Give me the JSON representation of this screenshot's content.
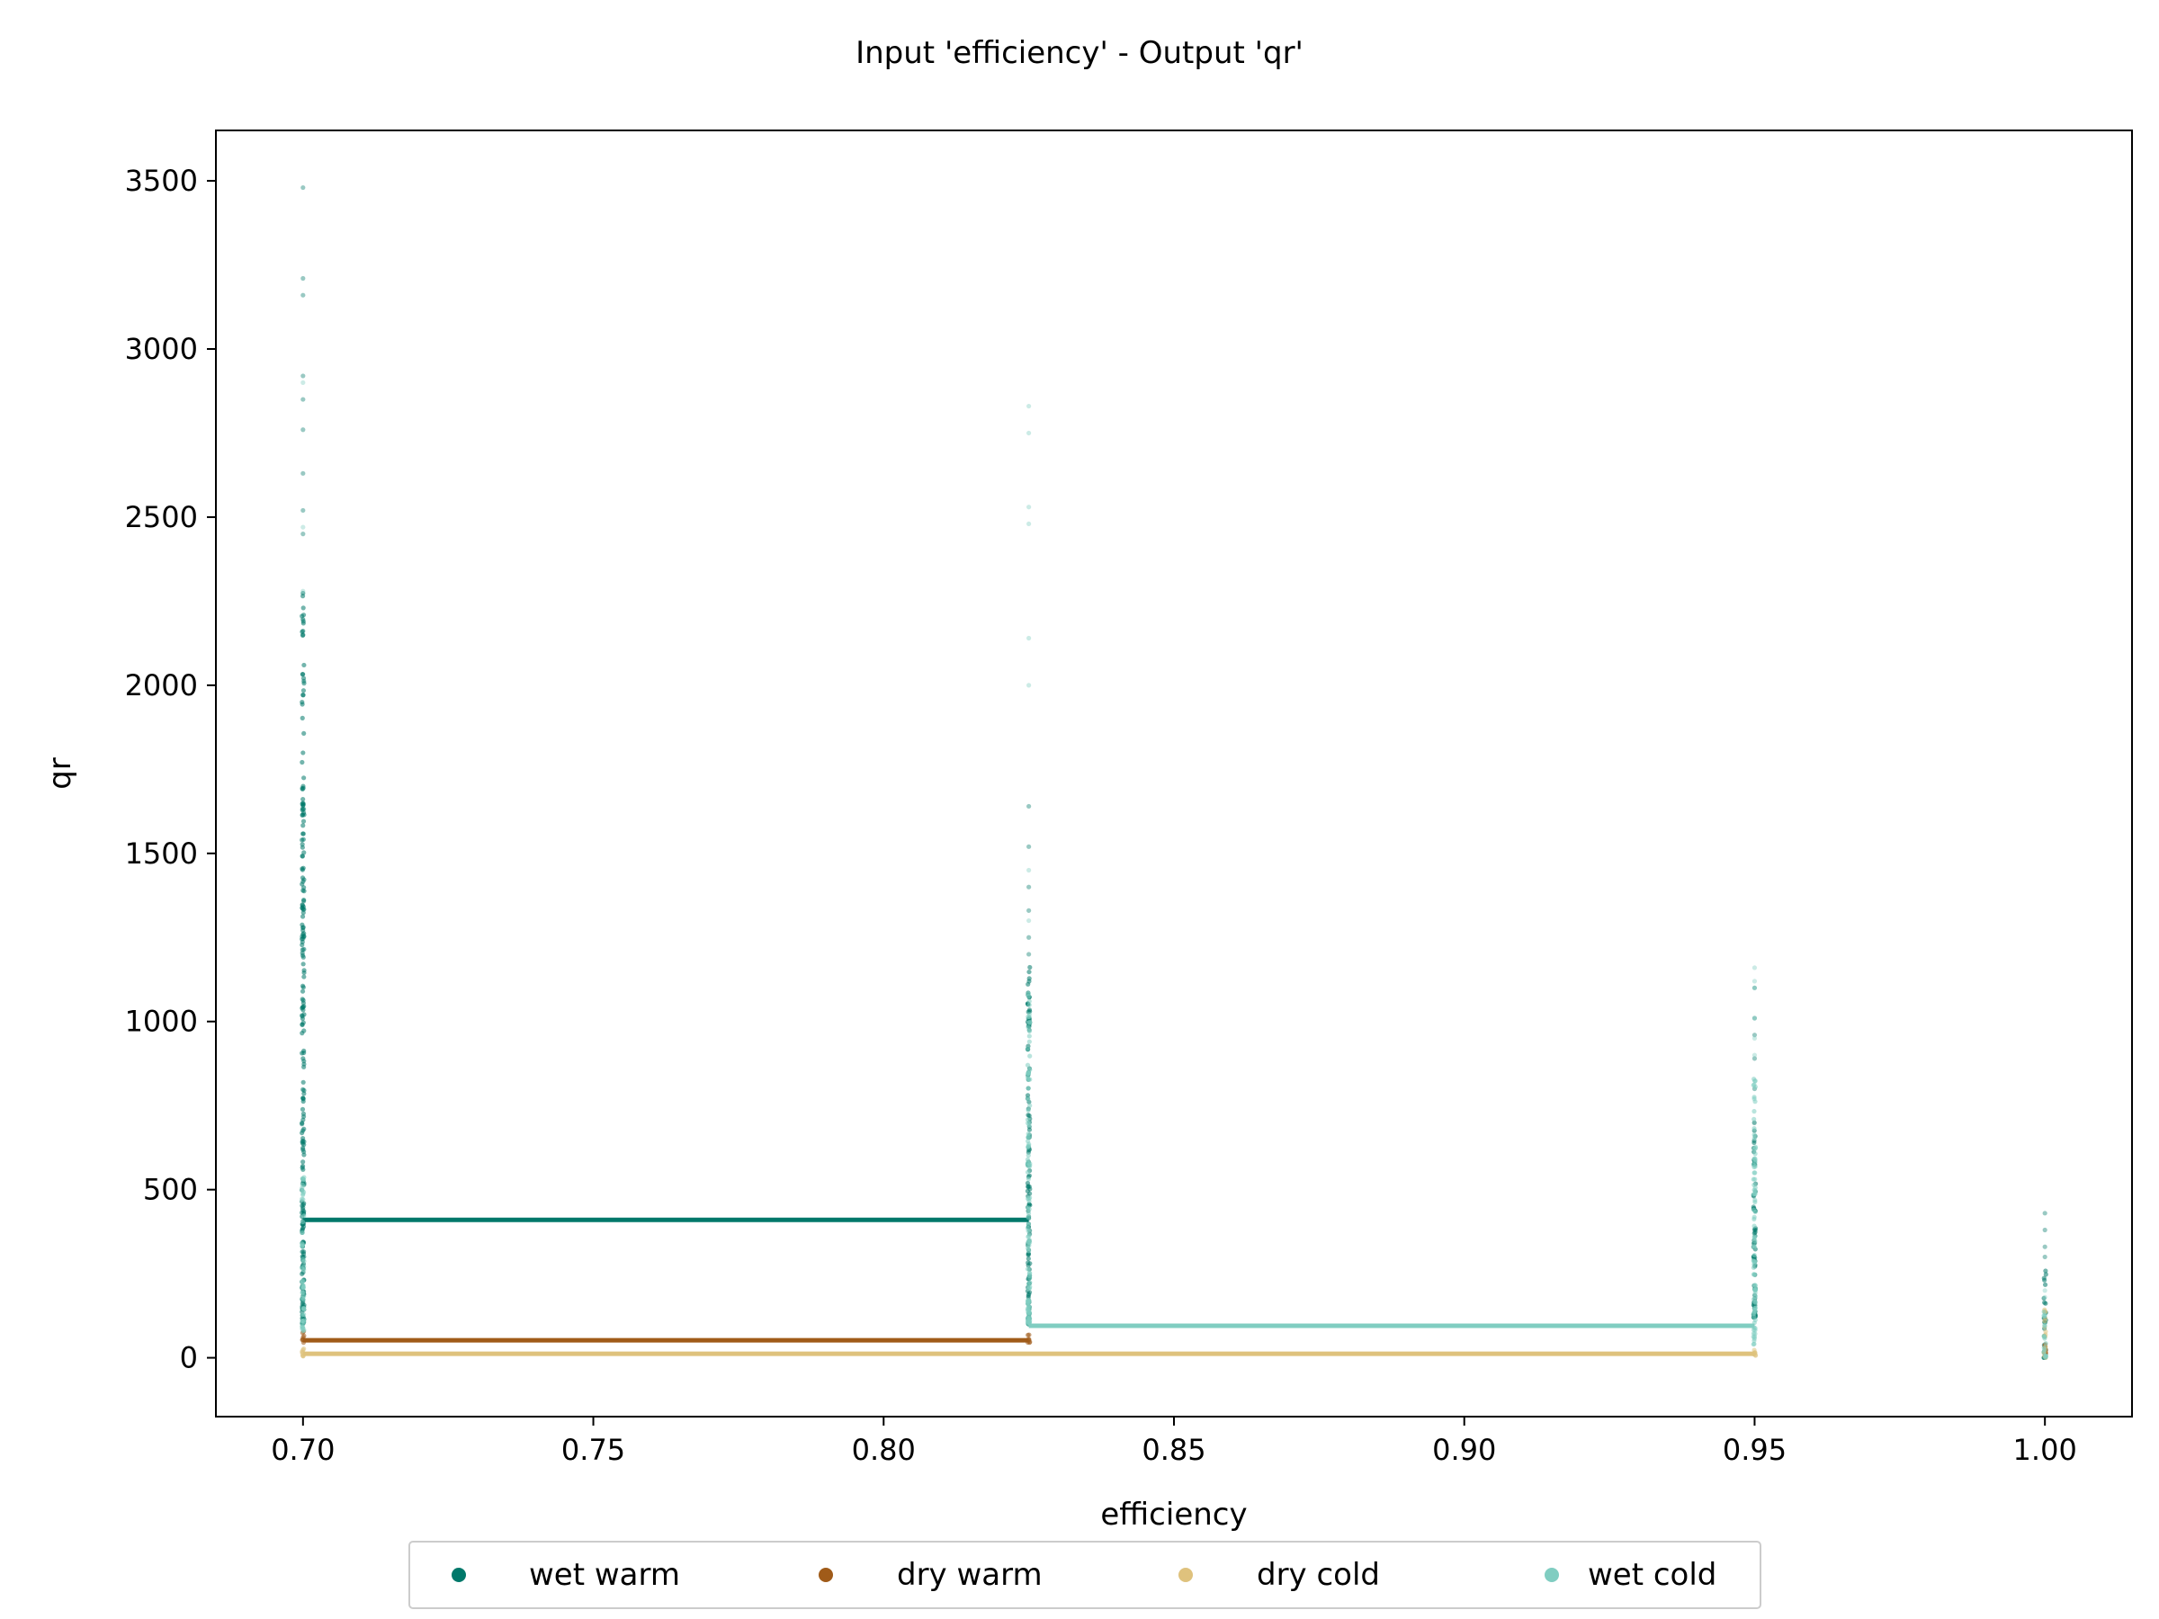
{
  "chart_data": {
    "type": "scatter",
    "title": "Input 'efficiency' - Output 'qr'",
    "xlabel": "efficiency",
    "ylabel": "qr",
    "xlim": [
      0.685,
      1.015
    ],
    "ylim": [
      -175,
      3650
    ],
    "x_ticks": [
      0.7,
      0.75,
      0.8,
      0.85,
      0.9,
      0.95,
      1.0
    ],
    "x_tick_labels": [
      "0.70",
      "0.75",
      "0.80",
      "0.85",
      "0.90",
      "0.95",
      "1.00"
    ],
    "y_ticks": [
      0,
      500,
      1000,
      1500,
      2000,
      2500,
      3000,
      3500
    ],
    "y_tick_labels": [
      "0",
      "500",
      "1000",
      "1500",
      "2000",
      "2500",
      "3000",
      "3500"
    ],
    "grid": false,
    "legend_position": "bottom-center",
    "series": [
      {
        "name": "wet warm",
        "color": "#00786a",
        "step_line": {
          "x": [
            0.7,
            0.825
          ],
          "y": 410
        },
        "point_clusters": [
          {
            "x": 0.7,
            "y_min": 100,
            "y_max": 2290,
            "outliers": [
              2450,
              2520,
              2630,
              2760,
              2850,
              2920,
              3160,
              3210,
              3480
            ]
          },
          {
            "x": 0.825,
            "y_min": 100,
            "y_max": 1180,
            "outliers": [
              1200,
              1250,
              1330,
              1400,
              1520,
              1640
            ]
          },
          {
            "x": 0.95,
            "y_min": 120,
            "y_max": 720,
            "outliers": [
              800,
              890,
              960,
              1010,
              1100
            ]
          },
          {
            "x": 1.0,
            "y_min": 0,
            "y_max": 260,
            "outliers": [
              300,
              330,
              380,
              430
            ]
          }
        ]
      },
      {
        "name": "dry warm",
        "color": "#a05b19",
        "step_line": {
          "x": [
            0.7,
            0.825
          ],
          "y": 52
        },
        "point_clusters": [
          {
            "x": 0.7,
            "y_min": 45,
            "y_max": 80,
            "outliers": []
          },
          {
            "x": 0.825,
            "y_min": 45,
            "y_max": 70,
            "outliers": []
          },
          {
            "x": 1.0,
            "y_min": 10,
            "y_max": 60,
            "outliers": []
          }
        ]
      },
      {
        "name": "dry cold",
        "color": "#dfc27d",
        "step_line": {
          "x": [
            0.7,
            0.95
          ],
          "y": 12
        },
        "point_clusters": [
          {
            "x": 0.7,
            "y_min": 5,
            "y_max": 30,
            "outliers": []
          },
          {
            "x": 0.95,
            "y_min": 5,
            "y_max": 25,
            "outliers": []
          },
          {
            "x": 1.0,
            "y_min": 0,
            "y_max": 160,
            "outliers": []
          }
        ]
      },
      {
        "name": "wet cold",
        "color": "#80cdc1",
        "step_line": {
          "x": [
            0.825,
            0.95
          ],
          "y": 95
        },
        "point_clusters": [
          {
            "x": 0.7,
            "y_min": 80,
            "y_max": 560,
            "outliers": [
              2280,
              2470,
              2900
            ]
          },
          {
            "x": 0.825,
            "y_min": 100,
            "y_max": 1100,
            "outliers": [
              1300,
              1450,
              2000,
              2140,
              2480,
              2530,
              2750,
              2830
            ]
          },
          {
            "x": 0.95,
            "y_min": 40,
            "y_max": 830,
            "outliers": [
              900,
              950,
              1010,
              1100,
              1120,
              1160
            ]
          },
          {
            "x": 1.0,
            "y_min": 0,
            "y_max": 150,
            "outliers": [
              180,
              200
            ]
          }
        ]
      }
    ]
  }
}
